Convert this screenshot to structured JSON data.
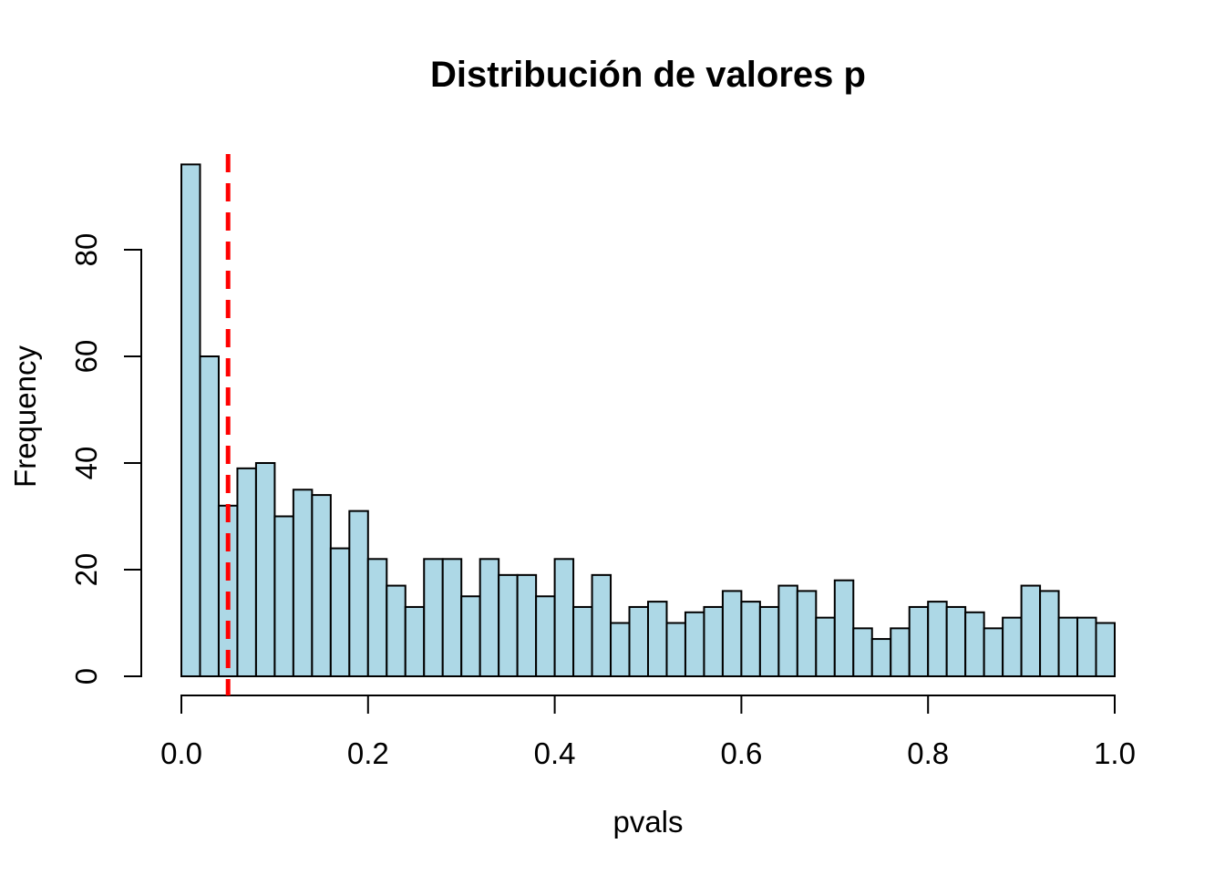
{
  "colors": {
    "background": "#FFFFFF",
    "text": "#000000",
    "bar_fill": "#ADD8E6",
    "bar_border": "#000000",
    "threshold_line": "#FF0000"
  },
  "chart_data": {
    "type": "bar",
    "chart_kind": "histogram",
    "title": "Distribución de valores p",
    "xlabel": "pvals",
    "ylabel": "Frequency",
    "grid": false,
    "legend_position": "none",
    "xlim": [
      0.0,
      1.0
    ],
    "ylim": [
      0,
      96
    ],
    "bin_start": 0.0,
    "bin_width": 0.02,
    "counts": [
      96,
      60,
      32,
      39,
      40,
      30,
      35,
      34,
      24,
      31,
      22,
      17,
      13,
      22,
      22,
      15,
      22,
      19,
      19,
      15,
      22,
      13,
      19,
      10,
      13,
      14,
      10,
      12,
      13,
      16,
      14,
      13,
      17,
      16,
      11,
      18,
      9,
      7,
      9,
      13,
      14,
      13,
      12,
      9,
      11,
      17,
      16,
      11,
      11,
      10
    ],
    "total_count": 1000,
    "x_ticks": [
      0.0,
      0.2,
      0.4,
      0.6,
      0.8,
      1.0
    ],
    "x_tick_labels": [
      "0.0",
      "0.2",
      "0.4",
      "0.6",
      "0.8",
      "1.0"
    ],
    "y_ticks": [
      0,
      20,
      40,
      60,
      80
    ],
    "y_tick_labels": [
      "0",
      "20",
      "40",
      "60",
      "80"
    ],
    "bar_fill": "#ADD8E6",
    "bar_border": "#000000",
    "vline": {
      "x": 0.05,
      "color": "#FF0000",
      "style": "dashed"
    }
  }
}
